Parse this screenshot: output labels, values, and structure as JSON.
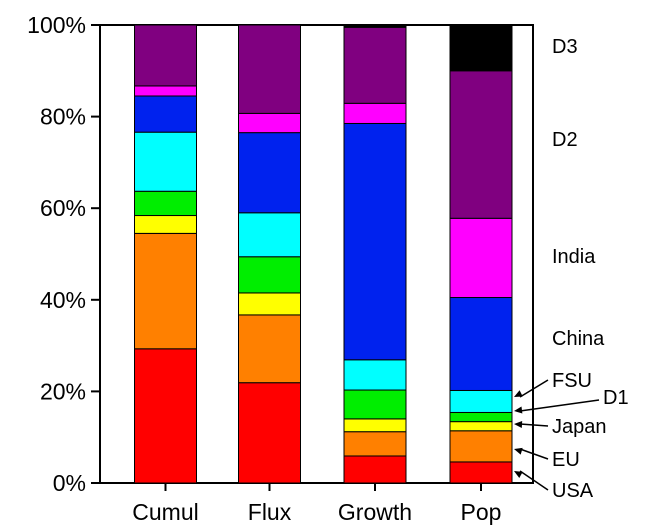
{
  "chart_data": {
    "type": "bar",
    "stacked": true,
    "normalized": true,
    "categories": [
      "Cumul",
      "Flux",
      "Growth",
      "Pop"
    ],
    "ylim": [
      0,
      100
    ],
    "ytick_values": [
      0,
      20,
      40,
      60,
      80,
      100
    ],
    "ytick_labels": [
      "0%",
      "20%",
      "40%",
      "60%",
      "80%",
      "100%"
    ],
    "grid": false,
    "legend_placement": "right, direct labels aligned to series bands",
    "series": [
      {
        "name": "USA",
        "color": "#ff0000",
        "values": [
          29.3,
          21.9,
          5.9,
          4.6
        ]
      },
      {
        "name": "EU",
        "color": "#ff8000",
        "values": [
          25.2,
          14.8,
          5.3,
          6.8
        ]
      },
      {
        "name": "Japan",
        "color": "#ffff00",
        "values": [
          3.9,
          4.8,
          2.8,
          2.0
        ]
      },
      {
        "name": "D1",
        "color": "#00ee00",
        "values": [
          5.3,
          7.9,
          6.3,
          2.0
        ]
      },
      {
        "name": "FSU",
        "color": "#00ffff",
        "values": [
          12.9,
          9.6,
          6.6,
          4.8
        ]
      },
      {
        "name": "China",
        "color": "#0022ee",
        "values": [
          7.9,
          17.5,
          51.6,
          20.3
        ]
      },
      {
        "name": "India",
        "color": "#ff00ff",
        "values": [
          2.2,
          4.2,
          4.4,
          17.3
        ]
      },
      {
        "name": "D2",
        "color": "#800080",
        "values": [
          13.3,
          19.3,
          16.6,
          32.2
        ]
      },
      {
        "name": "D3",
        "color": "#000000",
        "values": [
          0.0,
          0.0,
          0.5,
          10.0
        ]
      }
    ]
  }
}
